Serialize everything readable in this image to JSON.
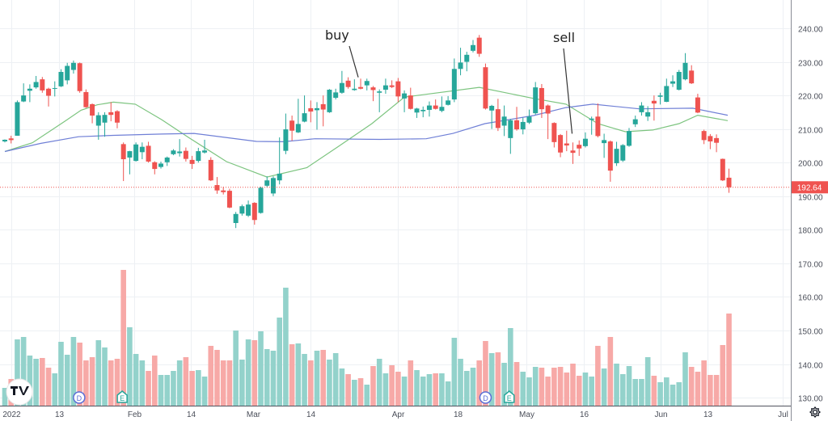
{
  "chart_data": {
    "type": "candlestick",
    "price_axis": {
      "ticks": [
        "240.00",
        "230.00",
        "220.00",
        "210.00",
        "200.00",
        "190.00",
        "180.00",
        "170.00",
        "160.00",
        "150.00",
        "140.00",
        "130.00"
      ],
      "tick_values": [
        240,
        230,
        220,
        210,
        200,
        190,
        180,
        170,
        160,
        150,
        140,
        130
      ],
      "ylim": [
        128.3,
        248.4
      ],
      "last_price_label": "192.64",
      "last_price": 192.64
    },
    "time_axis": {
      "ticks": [
        {
          "label": "2022",
          "index": 1
        },
        {
          "label": "13",
          "index": 8.7
        },
        {
          "label": "Feb",
          "index": 20.7
        },
        {
          "label": "14",
          "index": 29.8
        },
        {
          "label": "Mar",
          "index": 39.8
        },
        {
          "label": "14",
          "index": 49
        },
        {
          "label": "Apr",
          "index": 63
        },
        {
          "label": "18",
          "index": 72.5
        },
        {
          "label": "May",
          "index": 83.5
        },
        {
          "label": "16",
          "index": 92.8
        },
        {
          "label": "Jun",
          "index": 105
        },
        {
          "label": "13",
          "index": 112.6
        },
        {
          "label": "Jul",
          "index": 124.6
        }
      ]
    },
    "grid": true,
    "colors": {
      "up": "#26a69a",
      "down": "#ef5350",
      "volume_up": "#93d2cb",
      "volume_down": "#f7a9a7",
      "ma_fast": "#7cc47f",
      "ma_slow": "#6f7fd6",
      "grid": "#edf0f4",
      "last_price": "#ef5350"
    },
    "ohlc": [
      [
        206.3,
        206.9,
        206.0,
        206.8
      ],
      [
        207.2,
        208,
        205.7,
        206.7
      ],
      [
        208,
        218.5,
        208,
        218
      ],
      [
        218.2,
        223.6,
        218,
        220
      ],
      [
        221.4,
        223.3,
        218,
        222
      ],
      [
        222.4,
        225.8,
        222,
        224
      ],
      [
        224.8,
        225.5,
        220.8,
        221.5
      ],
      [
        222,
        222.3,
        216.7,
        219.9
      ],
      [
        222,
        224.2,
        219.7,
        222.2
      ],
      [
        222.7,
        227.8,
        222.5,
        227
      ],
      [
        224.5,
        229.7,
        223.3,
        228.8
      ],
      [
        227.6,
        230.4,
        226.5,
        229.7
      ],
      [
        229.6,
        229.8,
        220.8,
        221.3
      ],
      [
        221,
        221.8,
        216.3,
        216.5
      ],
      [
        217.4,
        217.6,
        211.7,
        214
      ],
      [
        211,
        215,
        206.8,
        214.1
      ],
      [
        211.9,
        215,
        207.7,
        214.2
      ],
      [
        215,
        218,
        212.3,
        214.2
      ],
      [
        215.3,
        215.6,
        210.2,
        211.9
      ],
      [
        205.5,
        206,
        194.5,
        201
      ],
      [
        201.5,
        203.5,
        196.5,
        203.4
      ],
      [
        200.5,
        206,
        200.3,
        205.4
      ],
      [
        203.1,
        206,
        201,
        204.7
      ],
      [
        205,
        206.2,
        200,
        200.3
      ],
      [
        200.1,
        200.4,
        196.5,
        198.1
      ],
      [
        198.7,
        200.3,
        198.2,
        199.7
      ],
      [
        200.1,
        201.8,
        199,
        201.5
      ],
      [
        202.5,
        204,
        202.2,
        203.6
      ],
      [
        202.8,
        207,
        201.8,
        203.3
      ],
      [
        203.5,
        204.5,
        200.3,
        201.1
      ],
      [
        200.8,
        202,
        198.1,
        199.6
      ],
      [
        200.5,
        204.4,
        200,
        203.4
      ],
      [
        203,
        206.8,
        202.7,
        203.6
      ],
      [
        200.8,
        201.6,
        194.5,
        194.7
      ],
      [
        193.3,
        195.7,
        190.7,
        191.7
      ],
      [
        191.7,
        192.8,
        190.5,
        191.2
      ],
      [
        191.6,
        192.2,
        186.4,
        186.6
      ],
      [
        182,
        185.3,
        180.5,
        184.7
      ],
      [
        184.8,
        187.5,
        184.2,
        187
      ],
      [
        184.2,
        188.7,
        183.8,
        187.5
      ],
      [
        188,
        188.2,
        181.5,
        182.9
      ],
      [
        185,
        192.8,
        184.8,
        192.5
      ],
      [
        193.1,
        195.9,
        192.6,
        194.7
      ],
      [
        190.8,
        195.9,
        190,
        195.4
      ],
      [
        194.7,
        207.5,
        193.5,
        196.7
      ],
      [
        203.5,
        214.6,
        202.5,
        209.9
      ],
      [
        212.5,
        214,
        206.5,
        209.5
      ],
      [
        209,
        219,
        208.8,
        211.5
      ],
      [
        212.2,
        220,
        212,
        214.7
      ],
      [
        216.2,
        218.5,
        212,
        215.2
      ],
      [
        215.6,
        218,
        209.8,
        216.2
      ],
      [
        217.4,
        220,
        210.8,
        215.8
      ],
      [
        215,
        221.9,
        214.8,
        221.7
      ],
      [
        219.3,
        222,
        218.8,
        220.9
      ],
      [
        220.8,
        227.3,
        220.5,
        223.7
      ],
      [
        224.4,
        225.4,
        222,
        222.5
      ],
      [
        221.6,
        224.8,
        221.4,
        222
      ],
      [
        222.5,
        225,
        221.8,
        222
      ],
      [
        223,
        225,
        221.5,
        224.3
      ],
      [
        222.4,
        222.8,
        218.3,
        221.6
      ],
      [
        220.8,
        221.8,
        215,
        221.2
      ],
      [
        221.7,
        225,
        220.5,
        223
      ],
      [
        223,
        224.5,
        222.2,
        222.5
      ],
      [
        224.2,
        225.2,
        218,
        219.7
      ],
      [
        219.1,
        221.5,
        215,
        220.6
      ],
      [
        220,
        222.3,
        215.8,
        216
      ],
      [
        214.9,
        216.3,
        213.3,
        216.1
      ],
      [
        215.3,
        216.7,
        213.5,
        215.7
      ],
      [
        215.7,
        218.2,
        213.7,
        217
      ],
      [
        217,
        218.8,
        215.8,
        216
      ],
      [
        215.4,
        219.7,
        215,
        216.6
      ],
      [
        217.2,
        219.8,
        217,
        218.5
      ],
      [
        218.8,
        231,
        218,
        227.9
      ],
      [
        227.9,
        234.2,
        226,
        229.8
      ],
      [
        230,
        233,
        227.2,
        232.1
      ],
      [
        233.3,
        236.5,
        232.8,
        235
      ],
      [
        237.2,
        238,
        231.5,
        232.4
      ],
      [
        228.4,
        229.5,
        215.8,
        216.1
      ],
      [
        215.5,
        217.2,
        210,
        216.9
      ],
      [
        215.9,
        219,
        209.4,
        210.3
      ],
      [
        211,
        217,
        207.9,
        213.7
      ],
      [
        207.3,
        213,
        202.6,
        212.6
      ],
      [
        212.6,
        216.6,
        209.5,
        209.9
      ],
      [
        209.9,
        213.4,
        208.4,
        212.1
      ],
      [
        211.9,
        215.8,
        211.5,
        213.7
      ],
      [
        214.7,
        224,
        214.3,
        222.4
      ],
      [
        222.2,
        223.4,
        213.3,
        215.9
      ],
      [
        217,
        217.3,
        207,
        214.6
      ],
      [
        211.8,
        212,
        204.5,
        206.1
      ],
      [
        208.2,
        208.5,
        201.6,
        203
      ],
      [
        205.7,
        209.5,
        203.4,
        205.1
      ],
      [
        203.6,
        206,
        199.6,
        202.9
      ],
      [
        205.3,
        206.6,
        202,
        204.2
      ],
      [
        204.9,
        209,
        204.5,
        207.1
      ],
      [
        212.7,
        213.7,
        208.3,
        213.1
      ],
      [
        213.7,
        217.6,
        207.5,
        207.9
      ],
      [
        205.8,
        208.6,
        201.4,
        206.7
      ],
      [
        206.3,
        206.6,
        194.3,
        197.6
      ],
      [
        199.8,
        206.2,
        199,
        204.1
      ],
      [
        200.6,
        205.5,
        200.2,
        205.2
      ],
      [
        205,
        210.3,
        204.7,
        209.4
      ],
      [
        211.4,
        214,
        210.6,
        212.9
      ],
      [
        215,
        218,
        214,
        217
      ],
      [
        213.7,
        216.8,
        212.4,
        215
      ],
      [
        218.4,
        220,
        212.5,
        217.6
      ],
      [
        219.6,
        220.8,
        217.3,
        220
      ],
      [
        218.1,
        225,
        218,
        222.8
      ],
      [
        223.5,
        226,
        222.5,
        224.2
      ],
      [
        221.7,
        227.6,
        221.5,
        227
      ],
      [
        224.8,
        232.6,
        224.5,
        229.7
      ],
      [
        227.4,
        229,
        223.4,
        223.6
      ],
      [
        219.4,
        220.5,
        214.7,
        214.9
      ],
      [
        209.4,
        209.8,
        205.5,
        206.7
      ],
      [
        207.9,
        208.5,
        204,
        206.3
      ],
      [
        207.3,
        208.4,
        203.1,
        205.9
      ],
      [
        201.1,
        201.2,
        194.5,
        194.7
      ],
      [
        195.5,
        198.2,
        191,
        192.64
      ]
    ],
    "volume_relative": [
      22,
      33,
      82,
      85,
      62,
      58,
      59,
      47,
      40,
      79,
      63,
      85,
      78,
      56,
      60,
      81,
      72,
      56,
      58,
      168,
      97,
      64,
      56,
      43,
      62,
      38,
      38,
      43,
      56,
      60,
      43,
      44,
      36,
      74,
      69,
      56,
      56,
      93,
      57,
      82,
      81,
      92,
      70,
      68,
      109,
      146,
      76,
      77,
      64,
      56,
      68,
      69,
      57,
      65,
      46,
      39,
      32,
      34,
      26,
      49,
      58,
      40,
      50,
      42,
      36,
      56,
      44,
      36,
      39,
      40,
      40,
      30,
      84,
      58,
      43,
      47,
      56,
      80,
      65,
      66,
      53,
      96,
      54,
      42,
      35,
      48,
      47,
      36,
      47,
      48,
      41,
      52,
      37,
      41,
      36,
      74,
      46,
      85,
      52,
      39,
      49,
      33,
      33,
      60,
      37,
      29,
      35,
      26,
      29,
      66,
      48,
      42,
      56,
      38,
      38,
      75,
      114
    ],
    "ma_fast": [
      [
        0,
        203.3
      ],
      [
        4.4,
        205.9
      ],
      [
        9.6,
        212.3
      ],
      [
        12.2,
        215.6
      ],
      [
        14.8,
        217.2
      ],
      [
        17.4,
        218
      ],
      [
        20.9,
        217.4
      ],
      [
        25.1,
        212.8
      ],
      [
        29.4,
        207.5
      ],
      [
        35.5,
        200.3
      ],
      [
        42,
        195.7
      ],
      [
        48.4,
        198.5
      ],
      [
        53.6,
        205
      ],
      [
        58.8,
        211.6
      ],
      [
        64,
        219.5
      ],
      [
        76,
        222.4
      ],
      [
        84.7,
        219.1
      ],
      [
        89.9,
        217.4
      ],
      [
        95,
        211.6
      ],
      [
        99.4,
        209.2
      ],
      [
        103.8,
        209.7
      ],
      [
        108,
        211.6
      ],
      [
        111,
        214.1
      ],
      [
        115.8,
        212.5
      ]
    ],
    "ma_slow": [
      [
        0,
        203.3
      ],
      [
        5.7,
        205.7
      ],
      [
        11.8,
        207.7
      ],
      [
        17.4,
        208.1
      ],
      [
        25.1,
        208.5
      ],
      [
        30.3,
        208.7
      ],
      [
        40.3,
        206.3
      ],
      [
        44.6,
        206.2
      ],
      [
        49.7,
        207.1
      ],
      [
        60.1,
        206.9
      ],
      [
        67.5,
        207.1
      ],
      [
        71.8,
        208.7
      ],
      [
        76.9,
        211.6
      ],
      [
        84.7,
        214
      ],
      [
        89.9,
        216.4
      ],
      [
        94.2,
        217.4
      ],
      [
        101.6,
        216
      ],
      [
        110.2,
        216.2
      ],
      [
        115.8,
        214.1
      ]
    ],
    "annotations": [
      {
        "text": "buy",
        "index": 57,
        "price": 222.5
      },
      {
        "text": "sell",
        "index": 91,
        "price": 206.2
      }
    ],
    "event_markers": [
      {
        "type": "dividend",
        "label": "D",
        "index": 11.9
      },
      {
        "type": "earnings",
        "label": "E",
        "index": 18.8
      },
      {
        "type": "dividend",
        "label": "D",
        "index": 77
      },
      {
        "type": "earnings",
        "label": "E",
        "index": 80.8
      }
    ]
  },
  "toolbar": {
    "settings_icon": "gear-icon",
    "logo": "TV"
  }
}
